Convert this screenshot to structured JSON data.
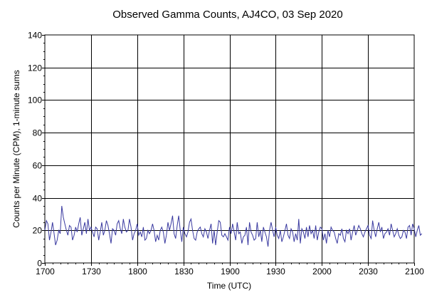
{
  "chart_data": {
    "type": "line",
    "title": "Observed Gamma Counts, AJ4CO, 03 Sep 2020",
    "xlabel": "Time (UTC)",
    "ylabel": "Counts per Minute (CPM), 1-minute sums",
    "x_ticks": [
      "1700",
      "1730",
      "1800",
      "1830",
      "1900",
      "1930",
      "2000",
      "2030",
      "2100"
    ],
    "y_ticks": [
      "0",
      "20",
      "40",
      "60",
      "80",
      "100",
      "120",
      "140"
    ],
    "xlim": [
      "17:00",
      "21:00"
    ],
    "ylim": [
      0,
      140
    ],
    "grid": true,
    "series": [
      {
        "color": "#3a3aa0",
        "x_start": "17:00",
        "x_step_minutes": 1,
        "values": [
          20,
          26,
          24,
          14,
          19,
          25,
          18,
          11,
          14,
          20,
          18,
          35,
          28,
          24,
          20,
          17,
          23,
          22,
          14,
          17,
          22,
          19,
          24,
          28,
          17,
          21,
          25,
          18,
          27,
          20,
          22,
          19,
          16,
          22,
          21,
          14,
          19,
          25,
          17,
          20,
          26,
          23,
          18,
          12,
          21,
          20,
          17,
          24,
          26,
          21,
          18,
          27,
          22,
          19,
          20,
          27,
          22,
          14,
          18,
          20,
          24,
          17,
          19,
          16,
          22,
          14,
          15,
          20,
          18,
          20,
          24,
          20,
          13,
          17,
          14,
          20,
          22,
          19,
          12,
          17,
          25,
          20,
          24,
          29,
          18,
          15,
          23,
          29,
          20,
          13,
          22,
          18,
          16,
          19,
          25,
          27,
          20,
          15,
          14,
          19,
          21,
          22,
          18,
          16,
          21,
          19,
          15,
          20,
          24,
          12,
          20,
          11,
          19,
          26,
          25,
          17,
          16,
          18,
          16,
          14,
          22,
          18,
          24,
          19,
          14,
          25,
          18,
          19,
          12,
          16,
          17,
          22,
          11,
          25,
          19,
          17,
          14,
          15,
          25,
          16,
          20,
          13,
          22,
          19,
          16,
          10,
          20,
          25,
          20,
          16,
          22,
          17,
          15,
          20,
          13,
          16,
          20,
          24,
          17,
          15,
          21,
          19,
          13,
          18,
          14,
          27,
          12,
          21,
          19,
          15,
          22,
          16,
          23,
          18,
          20,
          15,
          23,
          14,
          19,
          22,
          21,
          14,
          18,
          12,
          20,
          16,
          22,
          20,
          19,
          15,
          12,
          18,
          17,
          21,
          15,
          13,
          20,
          18,
          21,
          14,
          19,
          23,
          17,
          20,
          23,
          21,
          18,
          16,
          19,
          21,
          23,
          17,
          15,
          26,
          20,
          16,
          21,
          25,
          19,
          22,
          15,
          18,
          19,
          21,
          17,
          24,
          20,
          16,
          18,
          21,
          17,
          15,
          16,
          20,
          19,
          15,
          22,
          23,
          17,
          24,
          21,
          16,
          20,
          23,
          17,
          18
        ],
        "show_every": 1
      }
    ]
  }
}
